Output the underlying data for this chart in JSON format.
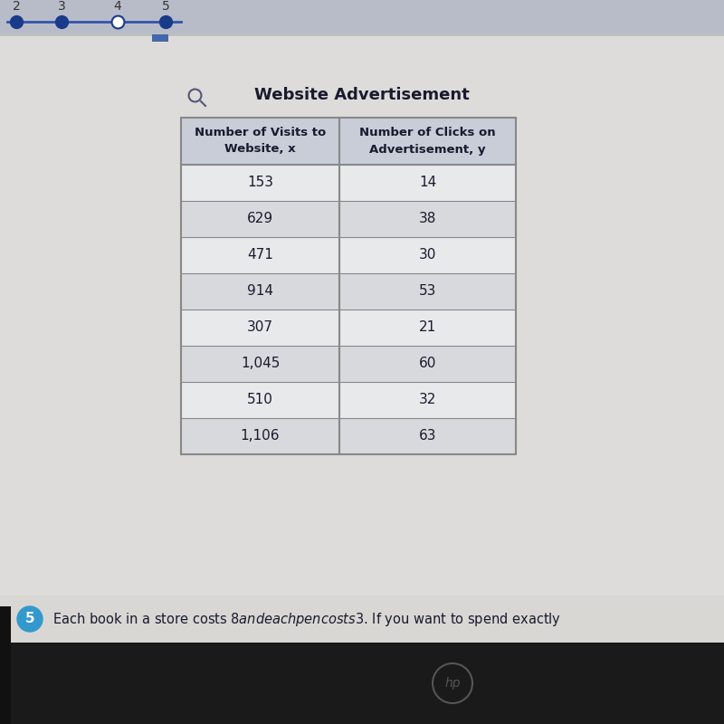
{
  "title": "Website Advertisement",
  "col1_header_line1": "Number of Visits to",
  "col1_header_line2": "Website, x",
  "col2_header_line1": "Number of Clicks on",
  "col2_header_line2": "Advertisement, y",
  "x_values": [
    "153",
    "629",
    "471",
    "914",
    "307",
    "1,045",
    "510",
    "1,106"
  ],
  "y_values": [
    "14",
    "38",
    "30",
    "53",
    "21",
    "60",
    "32",
    "63"
  ],
  "header_bg": "#c8cdd8",
  "row_bg_light": "#e8e9eb",
  "row_bg_dark": "#d8d9dc",
  "table_border_color": "#888888",
  "text_color": "#1a1a2e",
  "title_color": "#1a1a2e",
  "page_bg": "#c0bfbc",
  "white_area_bg": "#dddcda",
  "bottom_bar_bg": "#d8d7d4",
  "bottom_text": "Each book in a store costs $8 and each pen costs $3. If you want to spend exactly",
  "bottom_circle_color": "#3399cc",
  "dark_bottom_bg": "#1a1a1a",
  "top_bar_bg": "#b8bcc8",
  "dot_color_filled": "#1a3a8a",
  "dot_color_empty": "#ffffff",
  "line_color": "#3355aa",
  "magnify_color": "#555577",
  "blue_tab_color": "#4466aa"
}
